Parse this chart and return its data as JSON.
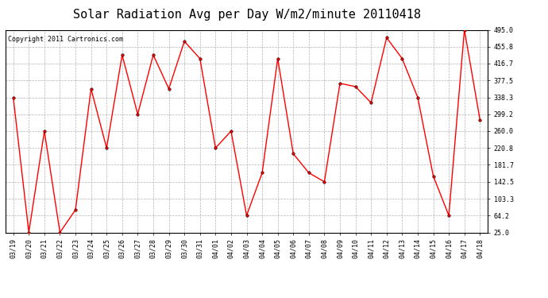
{
  "title": "Solar Radiation Avg per Day W/m2/minute 20110418",
  "copyright": "Copyright 2011 Cartronics.com",
  "labels": [
    "03/19",
    "03/20",
    "03/21",
    "03/22",
    "03/23",
    "03/24",
    "03/25",
    "03/26",
    "03/27",
    "03/28",
    "03/29",
    "03/30",
    "03/31",
    "04/01",
    "04/02",
    "04/03",
    "04/04",
    "04/05",
    "04/06",
    "04/07",
    "04/08",
    "04/09",
    "04/10",
    "04/11",
    "04/12",
    "04/13",
    "04/14",
    "04/15",
    "04/16",
    "04/17",
    "04/18"
  ],
  "values": [
    338.3,
    25.0,
    260.0,
    25.0,
    77.5,
    358.3,
    220.8,
    436.7,
    299.2,
    436.7,
    358.3,
    468.3,
    428.3,
    220.8,
    260.0,
    64.2,
    163.3,
    428.3,
    207.5,
    163.3,
    142.5,
    370.8,
    363.3,
    325.8,
    476.7,
    428.3,
    338.3,
    155.8,
    64.2,
    495.0,
    286.7
  ],
  "line_color": "#ff0000",
  "marker_size": 2.5,
  "bg_color": "#ffffff",
  "grid_color": "#aaaaaa",
  "ylim": [
    25.0,
    495.0
  ],
  "yticks": [
    25.0,
    64.2,
    103.3,
    142.5,
    181.7,
    220.8,
    260.0,
    299.2,
    338.3,
    377.5,
    416.7,
    455.8,
    495.0
  ],
  "title_fontsize": 11,
  "tick_fontsize": 6,
  "copyright_fontsize": 6
}
